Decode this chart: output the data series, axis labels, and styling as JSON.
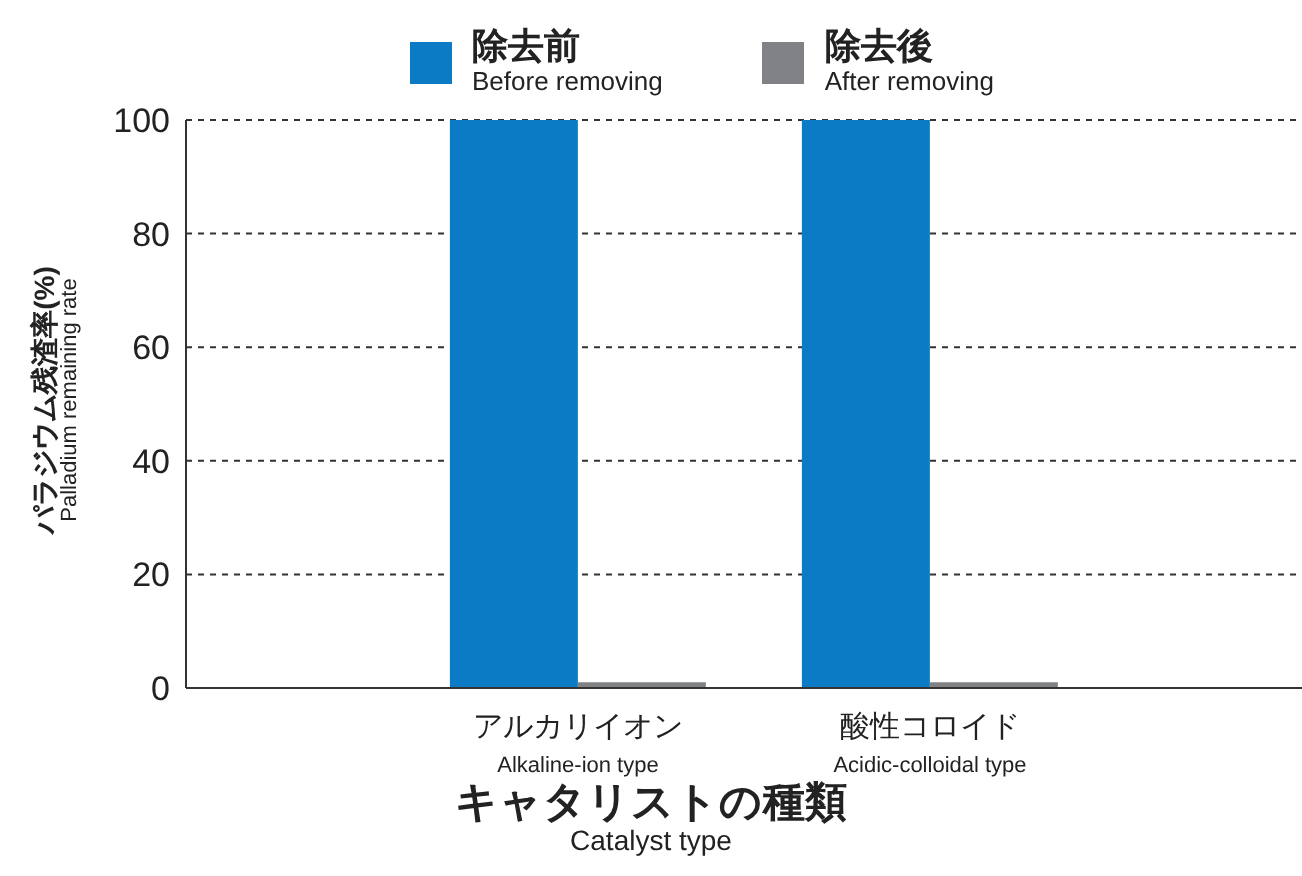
{
  "chart_data": {
    "type": "bar",
    "xlabel": "キャタリストの種類\nCatalyst type",
    "ylabel": "パラジウム残渣率(%)\nPalladium remaining rate",
    "categories": [
      "アルカリイオン\nAlkaline-ion type",
      "酸性コロイド\nAcidic-colloidal type"
    ],
    "series": [
      {
        "name": "除去前\nBefore removing",
        "color": "#0a7bc4",
        "values": [
          100,
          100
        ]
      },
      {
        "name": "除去後\nAfter removing",
        "color": "#808285",
        "values": [
          1,
          1
        ]
      }
    ],
    "ylim": [
      0,
      100
    ],
    "yticks": [
      0,
      20,
      40,
      60,
      80,
      100
    ],
    "grid": "y",
    "legend": "top"
  }
}
